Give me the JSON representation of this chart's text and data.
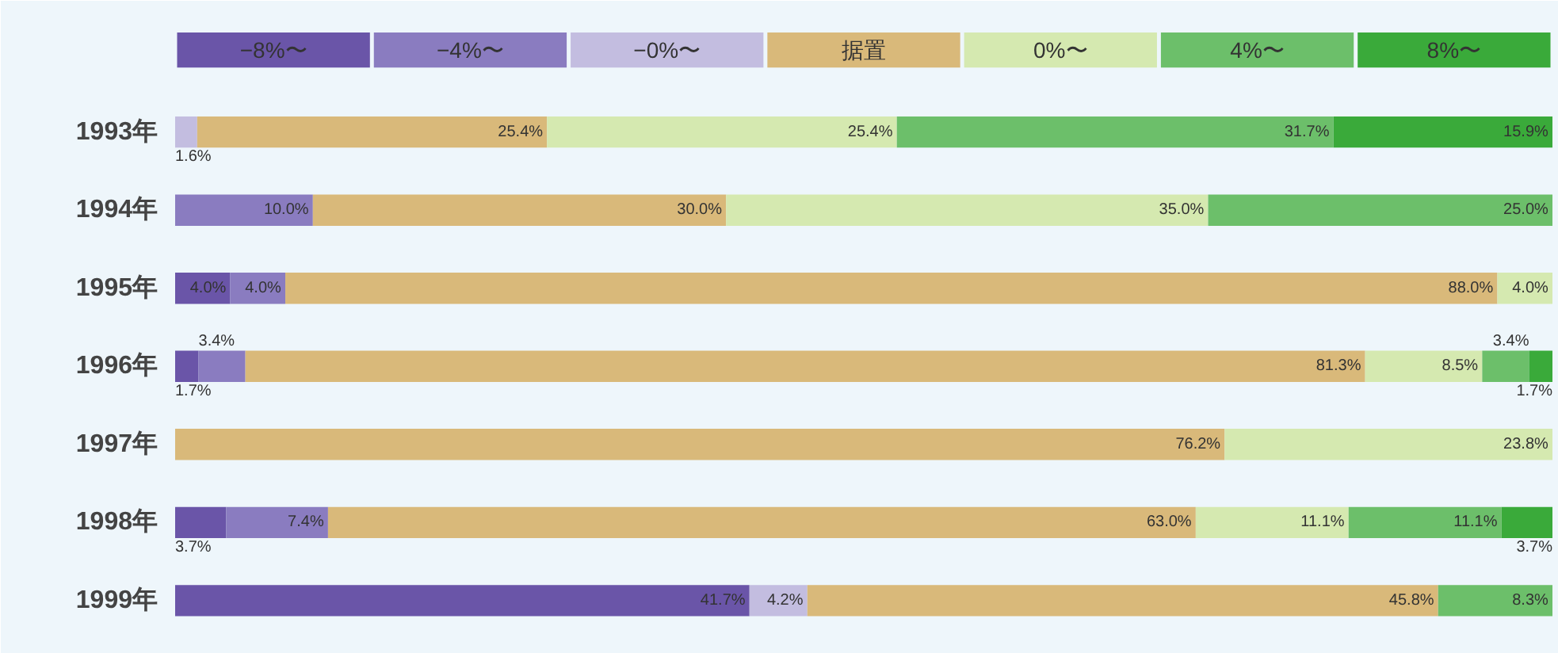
{
  "chart_data": {
    "type": "bar",
    "orientation": "horizontal",
    "stacked": true,
    "legend": "top",
    "tick_labels": "y",
    "xlim": [
      0,
      100
    ],
    "categories": [
      "1993年",
      "1994年",
      "1995年",
      "1996年",
      "1997年",
      "1998年",
      "1999年"
    ],
    "series": [
      {
        "name": "−8%〜",
        "color": "#6a55a8",
        "values": [
          null,
          null,
          4.0,
          1.7,
          null,
          3.7,
          41.7
        ],
        "value_labels": [
          null,
          null,
          "4.0%",
          "1.7%",
          null,
          "3.7%",
          "41.7%"
        ]
      },
      {
        "name": "−4%〜",
        "color": "#8a7cc0",
        "values": [
          null,
          10.0,
          4.0,
          3.4,
          null,
          7.4,
          null
        ],
        "value_labels": [
          null,
          "10.0%",
          "4.0%",
          "3.4%",
          null,
          "7.4%",
          null
        ]
      },
      {
        "name": "−0%〜",
        "color": "#c3bde0",
        "values": [
          1.6,
          null,
          null,
          null,
          null,
          null,
          4.2
        ],
        "value_labels": [
          "1.6%",
          null,
          null,
          null,
          null,
          null,
          "4.2%"
        ]
      },
      {
        "name": "据置",
        "color": "#d9b97a",
        "values": [
          25.4,
          30.0,
          88.0,
          81.3,
          76.2,
          63.0,
          45.8
        ],
        "value_labels": [
          "25.4%",
          "30.0%",
          "88.0%",
          "81.3%",
          "76.2%",
          "63.0%",
          "45.8%"
        ]
      },
      {
        "name": "0%〜",
        "color": "#d5e9b0",
        "values": [
          25.4,
          35.0,
          4.0,
          8.5,
          23.8,
          11.1,
          null
        ],
        "value_labels": [
          "25.4%",
          "35.0%",
          "4.0%",
          "8.5%",
          "23.8%",
          "11.1%",
          null
        ]
      },
      {
        "name": "4%〜",
        "color": "#6cbf6a",
        "values": [
          31.7,
          25.0,
          null,
          3.4,
          null,
          11.1,
          8.3
        ],
        "value_labels": [
          "31.7%",
          "25.0%",
          null,
          "3.4%",
          null,
          "11.1%",
          "8.3%"
        ]
      },
      {
        "name": "8%〜",
        "color": "#3aaa3a",
        "values": [
          15.9,
          null,
          null,
          1.7,
          null,
          3.7,
          null
        ],
        "value_labels": [
          "15.9%",
          null,
          null,
          "1.7%",
          null,
          "3.7%",
          null
        ]
      }
    ]
  }
}
